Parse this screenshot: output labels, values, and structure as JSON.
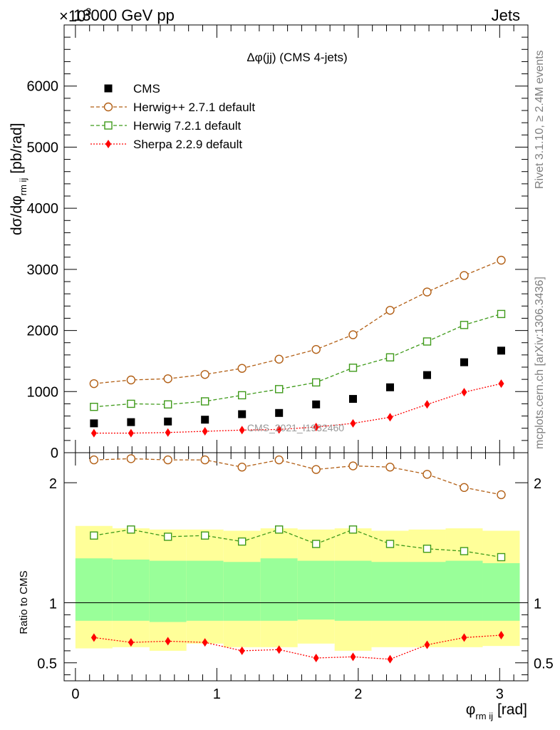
{
  "header": {
    "left": "13000 GeV pp",
    "right": "Jets",
    "multiplier": "×10",
    "multiplier_exp": "3"
  },
  "side_text": {
    "rivet": "Rivet 3.1.10, ≥ 2.4M events",
    "mcplots": "mcplots.cern.ch [arXiv:1306.3436]"
  },
  "watermark": "CMS_2021_I1932460",
  "colors": {
    "cms": "#000000",
    "herwigpp": "#b25f15",
    "herwig7": "#3f9a1a",
    "sherpa": "#ff0000",
    "band_outer": "#ffff99",
    "band_inner": "#99ff99"
  },
  "chart_data": [
    {
      "type": "scatter",
      "title": "Δφ(jj) (CMS 4-jets)",
      "ylabel": "dσ/dφ",
      "ylabel_sub": "rm ij",
      "ylabel_unit": "[pb/rad]",
      "y_scale": "×10^3",
      "xlim": [
        -0.08,
        3.2
      ],
      "ylim": [
        0,
        7000
      ],
      "yticks": [
        0,
        1000,
        2000,
        3000,
        4000,
        5000,
        6000
      ],
      "ytick_labels": [
        "0",
        "1000",
        "2000",
        "3000",
        "4000",
        "5000",
        "6000"
      ],
      "legend_position": "top-left",
      "x": [
        0.131,
        0.393,
        0.654,
        0.916,
        1.178,
        1.44,
        1.702,
        1.963,
        2.225,
        2.487,
        2.749,
        3.011
      ],
      "series": [
        {
          "name": "CMS",
          "marker": "filled-square",
          "color": "#000000",
          "values": [
            480,
            500,
            510,
            540,
            630,
            650,
            790,
            880,
            1070,
            1270,
            1480,
            1670
          ]
        },
        {
          "name": "Herwig++ 2.7.1 default",
          "marker": "open-circle",
          "color": "#b25f15",
          "values": [
            1130,
            1190,
            1210,
            1280,
            1380,
            1530,
            1690,
            1930,
            2330,
            2630,
            2900,
            3150
          ]
        },
        {
          "name": "Herwig 7.2.1 default",
          "marker": "open-square",
          "color": "#3f9a1a",
          "values": [
            750,
            800,
            790,
            840,
            940,
            1040,
            1150,
            1390,
            1560,
            1820,
            2090,
            2270
          ]
        },
        {
          "name": "Sherpa 2.2.9 default",
          "marker": "filled-diamond",
          "color": "#ff0000",
          "values": [
            320,
            320,
            330,
            350,
            370,
            380,
            420,
            480,
            580,
            790,
            990,
            1130
          ]
        }
      ]
    },
    {
      "type": "scatter",
      "ylabel": "Ratio to CMS",
      "xlabel": "φ",
      "xlabel_sub": "rm ij",
      "xlabel_unit": "[rad]",
      "xlim": [
        -0.08,
        3.2
      ],
      "ylim": [
        0.35,
        2.25
      ],
      "xticks": [
        0,
        1,
        2,
        3
      ],
      "xtick_labels": [
        "0",
        "1",
        "2",
        "3"
      ],
      "yticks": [
        0.5,
        1,
        2
      ],
      "ytick_labels": [
        "0.5",
        "1",
        "2"
      ],
      "x_edges": [
        0,
        0.262,
        0.524,
        0.785,
        1.047,
        1.309,
        1.571,
        1.833,
        2.094,
        2.356,
        2.618,
        2.88,
        3.142
      ],
      "band_inner_low": [
        0.85,
        0.85,
        0.84,
        0.85,
        0.85,
        0.85,
        0.86,
        0.85,
        0.85,
        0.85,
        0.85,
        0.85
      ],
      "band_inner_high": [
        1.37,
        1.36,
        1.35,
        1.35,
        1.34,
        1.37,
        1.35,
        1.35,
        1.34,
        1.34,
        1.35,
        1.33
      ],
      "band_outer_low": [
        0.62,
        0.63,
        0.6,
        0.66,
        0.63,
        0.63,
        0.66,
        0.6,
        0.63,
        0.63,
        0.63,
        0.64
      ],
      "band_outer_high": [
        1.64,
        1.62,
        1.61,
        1.61,
        1.6,
        1.62,
        1.61,
        1.62,
        1.6,
        1.61,
        1.62,
        1.6
      ],
      "x": [
        0.131,
        0.393,
        0.654,
        0.916,
        1.178,
        1.44,
        1.702,
        1.963,
        2.225,
        2.487,
        2.749,
        3.011
      ],
      "series": [
        {
          "name": "Herwig++ 2.7.1 default",
          "color": "#b25f15",
          "values": [
            2.19,
            2.2,
            2.19,
            2.19,
            2.13,
            2.19,
            2.11,
            2.14,
            2.13,
            2.07,
            1.96,
            1.9
          ]
        },
        {
          "name": "Herwig 7.2.1 default",
          "color": "#3f9a1a",
          "values": [
            1.56,
            1.61,
            1.55,
            1.56,
            1.51,
            1.61,
            1.49,
            1.61,
            1.49,
            1.45,
            1.43,
            1.38
          ]
        },
        {
          "name": "Sherpa 2.2.9 default",
          "color": "#ff0000",
          "values": [
            0.71,
            0.67,
            0.68,
            0.67,
            0.6,
            0.61,
            0.54,
            0.55,
            0.53,
            0.65,
            0.71,
            0.73
          ]
        }
      ]
    }
  ]
}
